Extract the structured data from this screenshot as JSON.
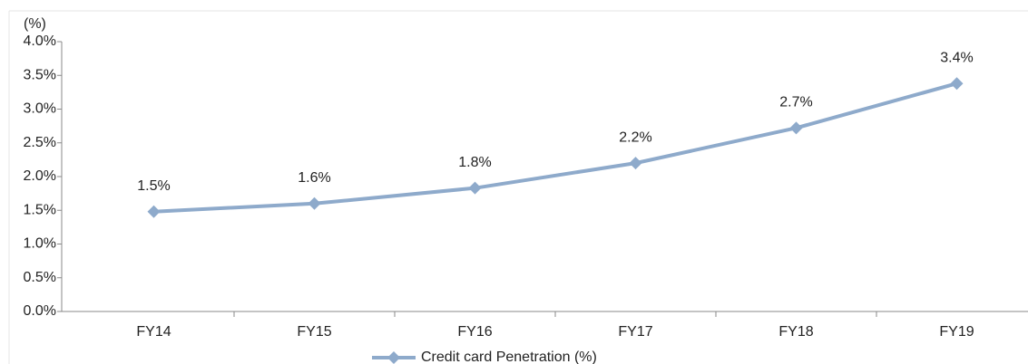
{
  "chart_data": {
    "type": "line",
    "y_label": "(%)",
    "categories": [
      "FY14",
      "FY15",
      "FY16",
      "FY17",
      "FY18",
      "FY19"
    ],
    "series": [
      {
        "name": "Credit card Penetration (%)",
        "color": "#8eaacb",
        "values": [
          1.48,
          1.6,
          1.83,
          2.2,
          2.72,
          3.38
        ],
        "value_labels": [
          "1.5%",
          "1.6%",
          "1.8%",
          "2.2%",
          "2.7%",
          "3.4%"
        ]
      }
    ],
    "ylim": [
      0,
      4
    ],
    "yticks": [
      {
        "value": 0,
        "label": "0.0%"
      },
      {
        "value": 0.5,
        "label": "0.5%"
      },
      {
        "value": 1,
        "label": "1.0%"
      },
      {
        "value": 1.5,
        "label": "1.5%"
      },
      {
        "value": 2,
        "label": "2.0%"
      },
      {
        "value": 2.5,
        "label": "2.5%"
      },
      {
        "value": 3,
        "label": "3.0%"
      },
      {
        "value": 3.5,
        "label": "3.5%"
      },
      {
        "value": 4,
        "label": "4.0%"
      }
    ],
    "legend": "bottom"
  }
}
